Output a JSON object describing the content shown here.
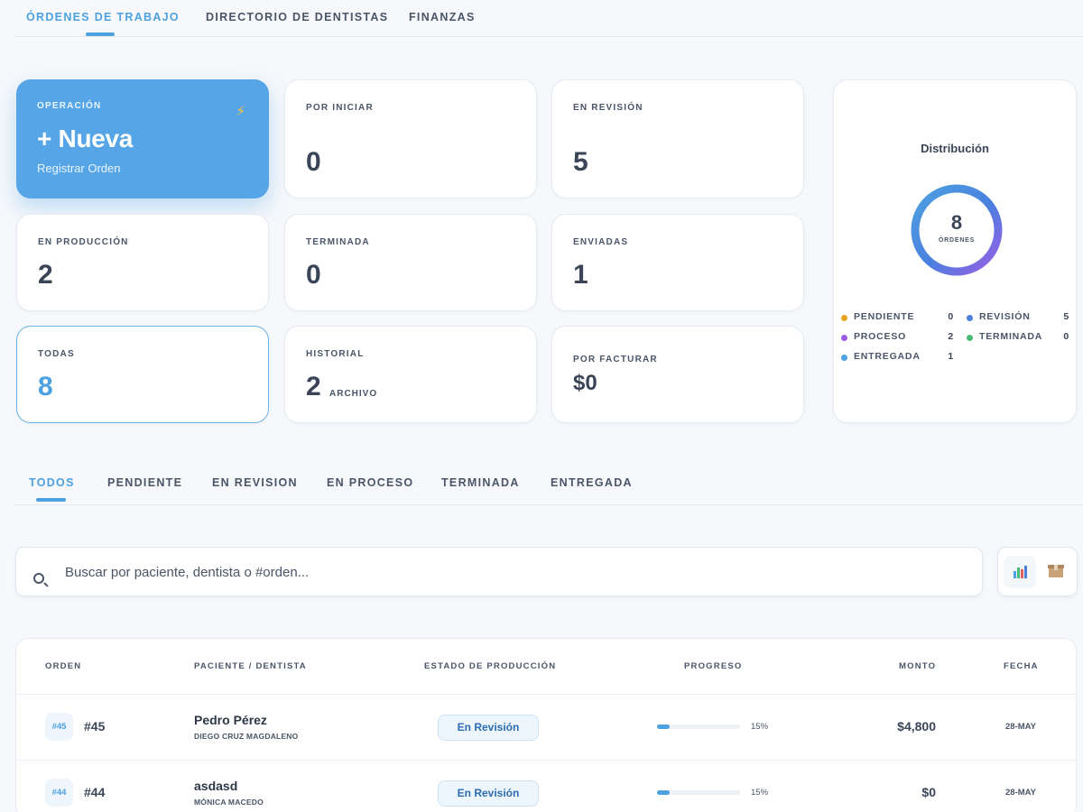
{
  "topnav": {
    "tabs": [
      {
        "label": "ÓRDENES DE TRABAJO"
      },
      {
        "label": "DIRECTORIO DE DENTISTAS"
      },
      {
        "label": "FINANZAS"
      }
    ]
  },
  "stats": {
    "new_order": {
      "label": "OPERACIÓN",
      "title": "+ Nueva",
      "subtitle": "Registrar Orden",
      "icon": "lightning-icon"
    },
    "por_iniciar": {
      "label": "POR INICIAR",
      "value": "0"
    },
    "en_revision": {
      "label": "EN REVISIÓN",
      "value": "5"
    },
    "en_produccion": {
      "label": "EN PRODUCCIÓN",
      "value": "2"
    },
    "terminada": {
      "label": "TERMINADA",
      "value": "0"
    },
    "enviadas": {
      "label": "ENVIADAS",
      "value": "1"
    },
    "todas": {
      "label": "TODAS",
      "value": "8"
    },
    "historial": {
      "label": "HISTORIAL",
      "value": "2",
      "suffix": "ARCHIVO"
    },
    "por_facturar": {
      "label": "POR FACTURAR",
      "value": "$0"
    }
  },
  "distribution": {
    "title": "Distribución",
    "total": "8",
    "total_label": "ÓRDENES",
    "legend": [
      {
        "name": "PENDIENTE",
        "count": "0",
        "color": "#e8a422"
      },
      {
        "name": "REVISIÓN",
        "count": "5",
        "color": "#4a7fe0"
      },
      {
        "name": "PROCESO",
        "count": "2",
        "color": "#9b5de5"
      },
      {
        "name": "TERMINADA",
        "count": "0",
        "color": "#48bb78"
      },
      {
        "name": "ENTREGADA",
        "count": "1",
        "color": "#4ea1e0"
      }
    ]
  },
  "filters": {
    "tabs": [
      {
        "label": "TODOS"
      },
      {
        "label": "PENDIENTE"
      },
      {
        "label": "EN REVISION"
      },
      {
        "label": "EN PROCESO"
      },
      {
        "label": "TERMINADA"
      },
      {
        "label": "ENTREGADA"
      }
    ]
  },
  "search": {
    "placeholder": "Buscar por paciente, dentista o #orden...",
    "value": ""
  },
  "tools": {
    "chart_icon": "bar-chart-icon",
    "archive_icon": "package-icon"
  },
  "table": {
    "columns": [
      "ORDEN",
      "PACIENTE / DENTISTA",
      "ESTADO DE PRODUCCIÓN",
      "PROGRESO",
      "MONTO",
      "FECHA"
    ],
    "rows": [
      {
        "chip": "#45",
        "order": "#45",
        "patient": "Pedro Pérez",
        "dentist": "DIEGO CRUZ MAGDALENO",
        "status": "En Revisión",
        "progress": 15,
        "progress_label": "15%",
        "amount": "$4,800",
        "date": "28-MAY"
      },
      {
        "chip": "#44",
        "order": "#44",
        "patient": "asdasd",
        "dentist": "MÓNICA MACEDO",
        "status": "En Revisión",
        "progress": 15,
        "progress_label": "15%",
        "amount": "$0",
        "date": "28-MAY"
      }
    ]
  }
}
